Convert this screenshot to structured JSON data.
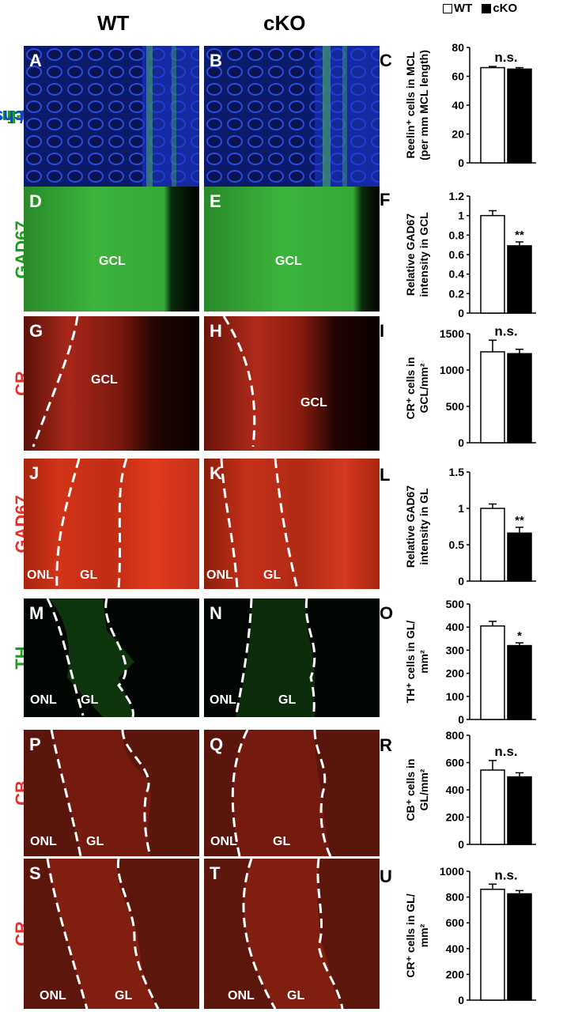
{
  "header": {
    "wt_title": "WT",
    "cko_title": "cKO",
    "legend_wt": "WT",
    "legend_cko": "cKO"
  },
  "colors": {
    "hoechst": "#1f3fd6",
    "green": "#2fb52f",
    "red": "#ee3a2a"
  },
  "rows": [
    {
      "label_parts": [
        {
          "text": "Reelin",
          "color": "#1a9e1a"
        },
        {
          "text": "/",
          "color": "#1a3fd6"
        },
        {
          "text": "Hoechst",
          "color": "#1a3fd6"
        }
      ],
      "panels": [
        "A",
        "B"
      ],
      "regions": [],
      "chart_letter": "C"
    },
    {
      "label_parts": [
        {
          "text": "GAD67",
          "color": "#1a9e1a"
        }
      ],
      "panels": [
        "D",
        "E"
      ],
      "regions": [
        "GCL"
      ],
      "chart_letter": "F"
    },
    {
      "label_parts": [
        {
          "text": "CR",
          "color": "#e8302a"
        }
      ],
      "panels": [
        "G",
        "H"
      ],
      "regions": [
        "GCL"
      ],
      "chart_letter": "I"
    },
    {
      "label_parts": [
        {
          "text": "GAD67",
          "color": "#e8302a"
        }
      ],
      "panels": [
        "J",
        "K"
      ],
      "regions": [
        "ONL",
        "GL"
      ],
      "chart_letter": "L"
    },
    {
      "label_parts": [
        {
          "text": "TH",
          "color": "#1a9e1a"
        }
      ],
      "panels": [
        "M",
        "N"
      ],
      "regions": [
        "ONL",
        "GL"
      ],
      "chart_letter": "O"
    },
    {
      "label_parts": [
        {
          "text": "CB",
          "color": "#e8302a"
        }
      ],
      "panels": [
        "P",
        "Q"
      ],
      "regions": [
        "ONL",
        "GL"
      ],
      "chart_letter": "R"
    },
    {
      "label_parts": [
        {
          "text": "CR",
          "color": "#e8302a"
        }
      ],
      "panels": [
        "S",
        "T"
      ],
      "regions": [
        "ONL",
        "GL"
      ],
      "chart_letter": "U"
    }
  ],
  "chart_data": [
    {
      "type": "bar",
      "panel": "C",
      "categories": [
        "WT",
        "cKO"
      ],
      "values": [
        66,
        65
      ],
      "errors": [
        0.8,
        1.0
      ],
      "ylabel_lines": [
        "Reelin⁺ cells in MCL",
        "(per mm MCL length)"
      ],
      "yticks": [
        "0",
        "20",
        "40",
        "60",
        "80"
      ],
      "ylim": [
        0,
        80
      ],
      "significance": "n.s."
    },
    {
      "type": "bar",
      "panel": "F",
      "categories": [
        "WT",
        "cKO"
      ],
      "values": [
        1.0,
        0.69
      ],
      "errors": [
        0.05,
        0.04
      ],
      "ylabel_lines": [
        "Relative GAD67",
        "intensity in GCL"
      ],
      "yticks": [
        "0",
        "0.2",
        "0.4",
        "0.6",
        "0.8",
        "1",
        "1.2"
      ],
      "ylim": [
        0,
        1.2
      ],
      "significance": "**"
    },
    {
      "type": "bar",
      "panel": "I",
      "categories": [
        "WT",
        "cKO"
      ],
      "values": [
        1250,
        1225
      ],
      "errors": [
        160,
        60
      ],
      "ylabel_lines": [
        "CR⁺ cells in",
        "GCL/mm²"
      ],
      "yticks": [
        "0",
        "500",
        "1000",
        "1500"
      ],
      "ylim": [
        0,
        1500
      ],
      "significance": "n.s."
    },
    {
      "type": "bar",
      "panel": "L",
      "categories": [
        "WT",
        "cKO"
      ],
      "values": [
        1.0,
        0.66
      ],
      "errors": [
        0.06,
        0.08
      ],
      "ylabel_lines": [
        "Relative GAD67",
        "intensity in GL"
      ],
      "yticks": [
        "0",
        "0.5",
        "1",
        "1.5"
      ],
      "ylim": [
        0,
        1.5
      ],
      "significance": "**"
    },
    {
      "type": "bar",
      "panel": "O",
      "categories": [
        "WT",
        "cKO"
      ],
      "values": [
        405,
        320
      ],
      "errors": [
        20,
        12
      ],
      "ylabel_lines": [
        "TH⁺ cells in GL/",
        "mm²"
      ],
      "yticks": [
        "0",
        "100",
        "200",
        "300",
        "400",
        "500"
      ],
      "ylim": [
        0,
        500
      ],
      "significance": "*"
    },
    {
      "type": "bar",
      "panel": "R",
      "categories": [
        "WT",
        "cKO"
      ],
      "values": [
        545,
        495
      ],
      "errors": [
        70,
        30
      ],
      "ylabel_lines": [
        "CB⁺ cells in",
        "GL/mm²"
      ],
      "yticks": [
        "0",
        "200",
        "400",
        "600",
        "800"
      ],
      "ylim": [
        0,
        800
      ],
      "significance": "n.s."
    },
    {
      "type": "bar",
      "panel": "U",
      "categories": [
        "WT",
        "cKO"
      ],
      "values": [
        860,
        825
      ],
      "errors": [
        40,
        25
      ],
      "ylabel_lines": [
        "CR⁺ cells in GL/",
        "mm²"
      ],
      "yticks": [
        "0",
        "200",
        "400",
        "600",
        "800",
        "1000"
      ],
      "ylim": [
        0,
        1000
      ],
      "significance": "n.s."
    }
  ]
}
